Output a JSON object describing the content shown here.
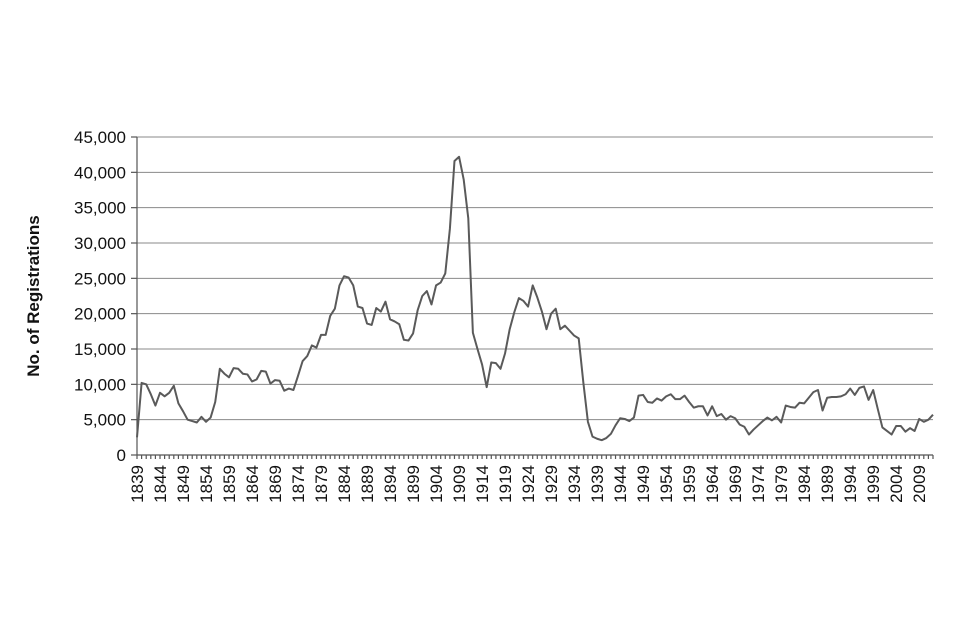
{
  "chart_data": {
    "type": "line",
    "ylabel": "No. of Registrations",
    "xlabel": "",
    "ylim": [
      0,
      45000
    ],
    "yticks": [
      0,
      5000,
      10000,
      15000,
      20000,
      25000,
      30000,
      35000,
      40000,
      45000
    ],
    "ytick_labels": [
      "0",
      "5,000",
      "10,000",
      "15,000",
      "20,000",
      "25,000",
      "30,000",
      "35,000",
      "40,000",
      "45,000"
    ],
    "xlim": [
      1839,
      2012
    ],
    "xtick_labels": [
      "1839",
      "1844",
      "1849",
      "1854",
      "1859",
      "1864",
      "1869",
      "1874",
      "1879",
      "1884",
      "1889",
      "1894",
      "1899",
      "1904",
      "1909",
      "1914",
      "1919",
      "1924",
      "1929",
      "1934",
      "1939",
      "1944",
      "1949",
      "1954",
      "1959",
      "1964",
      "1969",
      "1974",
      "1979",
      "1984",
      "1989",
      "1994",
      "1999",
      "2004",
      "2009"
    ],
    "grid": "horizontal",
    "colors": {
      "line": "#5a5a5a",
      "grid": "#8a8a8a"
    },
    "series": [
      {
        "x": [
          1839,
          1840,
          1841,
          1842,
          1843,
          1844,
          1845,
          1846,
          1847,
          1848,
          1849,
          1850,
          1851,
          1852,
          1853,
          1854,
          1855,
          1856,
          1857,
          1858,
          1859,
          1860,
          1861,
          1862,
          1863,
          1864,
          1865,
          1866,
          1867,
          1868,
          1869,
          1870,
          1871,
          1872,
          1873,
          1874,
          1875,
          1876,
          1877,
          1878,
          1879,
          1880,
          1881,
          1882,
          1883,
          1884,
          1885,
          1886,
          1887,
          1888,
          1889,
          1890,
          1891,
          1892,
          1893,
          1894,
          1895,
          1896,
          1897,
          1898,
          1899,
          1900,
          1901,
          1902,
          1903,
          1904,
          1905,
          1906,
          1907,
          1908,
          1909,
          1910,
          1911,
          1912,
          1913,
          1914,
          1915,
          1916,
          1917,
          1918,
          1919,
          1920,
          1921,
          1922,
          1923,
          1924,
          1925,
          1926,
          1927,
          1928,
          1929,
          1930,
          1931,
          1932,
          1933,
          1934,
          1935,
          1936,
          1937,
          1938,
          1939,
          1940,
          1941,
          1942,
          1943,
          1944,
          1945,
          1946,
          1947,
          1948,
          1949,
          1950,
          1951,
          1952,
          1953,
          1954,
          1955,
          1956,
          1957,
          1958,
          1959,
          1960,
          1961,
          1962,
          1963,
          1964,
          1965,
          1966,
          1967,
          1968,
          1969,
          1970,
          1971,
          1972,
          1973,
          1974,
          1975,
          1976,
          1977,
          1978,
          1979,
          1980,
          1981,
          1982,
          1983,
          1984,
          1985,
          1986,
          1987,
          1988,
          1989,
          1990,
          1991,
          1992,
          1993,
          1994,
          1995,
          1996,
          1997,
          1998,
          1999,
          2000,
          2001,
          2002,
          2003,
          2004,
          2005,
          2006,
          2007,
          2008,
          2009,
          2010,
          2011,
          2012
        ],
        "values": [
          2500,
          10200,
          10000,
          8600,
          7000,
          8800,
          8300,
          8800,
          9800,
          7300,
          6200,
          5000,
          4800,
          4600,
          5400,
          4700,
          5300,
          7500,
          12200,
          11500,
          11000,
          12300,
          12200,
          11500,
          11400,
          10400,
          10700,
          11900,
          11800,
          10100,
          10600,
          10500,
          9100,
          9400,
          9200,
          11200,
          13300,
          14000,
          15500,
          15200,
          17000,
          17000,
          19700,
          20700,
          24000,
          25300,
          25100,
          24000,
          21000,
          20800,
          18600,
          18400,
          20800,
          20300,
          21700,
          19200,
          18900,
          18500,
          16300,
          16200,
          17200,
          20500,
          22500,
          23200,
          21300,
          24000,
          24400,
          25700,
          32000,
          41600,
          42200,
          39000,
          33500,
          17300,
          15000,
          12800,
          9600,
          13100,
          13000,
          12200,
          14400,
          17800,
          20200,
          22200,
          21800,
          21000,
          24000,
          22300,
          20300,
          17800,
          20000,
          20700,
          17800,
          18300,
          17600,
          16900,
          16500,
          10300,
          4700,
          2600,
          2300,
          2100,
          2400,
          3000,
          4200,
          5200,
          5100,
          4800,
          5300,
          8400,
          8500,
          7500,
          7400,
          8000,
          7700,
          8300,
          8600,
          7900,
          7900,
          8400,
          7500,
          6700,
          6900,
          6900,
          5600,
          6900,
          5500,
          5800,
          5000,
          5500,
          5200,
          4300,
          4000,
          2900,
          3600,
          4200,
          4800,
          5300,
          4900,
          5400,
          4600,
          7000,
          6800,
          6700,
          7400,
          7300,
          8100,
          8900,
          9200,
          6300,
          8100,
          8200,
          8200,
          8300,
          8600,
          9400,
          8500,
          9500,
          9700,
          7800,
          9200,
          6500,
          3900,
          3400,
          2900,
          4100,
          4100,
          3300,
          3800,
          3400,
          5100,
          4700,
          5000,
          5700
        ]
      }
    ]
  }
}
